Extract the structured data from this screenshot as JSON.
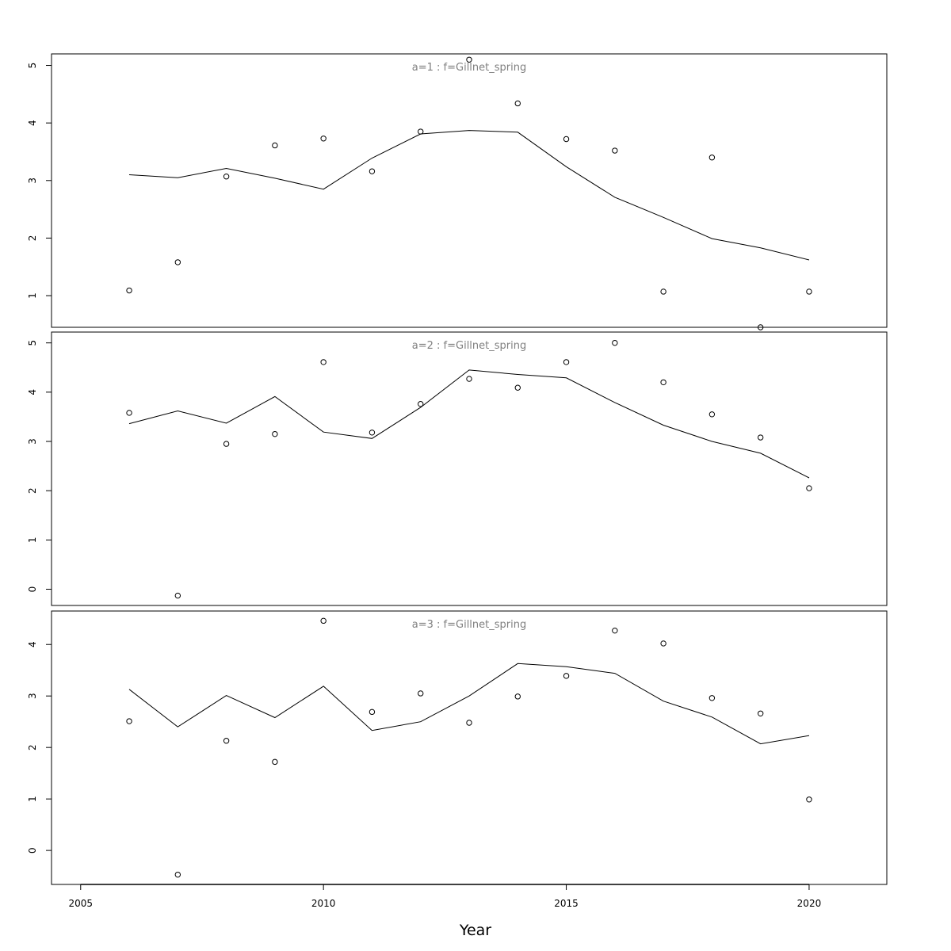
{
  "chart_data": {
    "type": "line",
    "xlabel": "Year",
    "xlim": [
      2004.4,
      2021.6
    ],
    "xticks": [
      2005,
      2010,
      2015,
      2020
    ],
    "colors": {
      "line": "#000000",
      "points": "#000000",
      "title": "#808080",
      "frame": "#000000"
    },
    "panels": [
      {
        "title": "a=1  :  f=Gillnet_spring",
        "ylim": [
          0.45,
          5.2
        ],
        "yticks": [
          1,
          2,
          3,
          4,
          5
        ],
        "x": [
          2006,
          2007,
          2008,
          2009,
          2010,
          2011,
          2012,
          2013,
          2014,
          2015,
          2016,
          2017,
          2018,
          2019,
          2020
        ],
        "observed": [
          1.09,
          1.58,
          3.07,
          3.61,
          3.73,
          3.16,
          3.85,
          5.1,
          4.34,
          3.72,
          3.52,
          1.07,
          3.4,
          0.45,
          1.07
        ],
        "fitted": [
          3.1,
          3.05,
          3.21,
          3.04,
          2.85,
          3.39,
          3.81,
          3.87,
          3.84,
          3.24,
          2.71,
          2.36,
          1.99,
          1.83,
          1.62
        ]
      },
      {
        "title": "a=2  :  f=Gillnet_spring",
        "ylim": [
          -0.33,
          5.22
        ],
        "yticks": [
          0,
          1,
          2,
          3,
          4,
          5
        ],
        "x": [
          2006,
          2007,
          2008,
          2009,
          2010,
          2011,
          2012,
          2013,
          2014,
          2015,
          2016,
          2017,
          2018,
          2019,
          2020
        ],
        "observed": [
          3.58,
          -0.13,
          2.95,
          3.15,
          4.61,
          3.18,
          3.76,
          4.27,
          4.09,
          4.61,
          5.0,
          4.2,
          3.55,
          3.08,
          2.05
        ],
        "fitted": [
          3.36,
          3.62,
          3.37,
          3.91,
          3.19,
          3.06,
          3.69,
          4.45,
          4.36,
          4.29,
          3.79,
          3.33,
          3.0,
          2.76,
          2.26
        ]
      },
      {
        "title": "a=3  :  f=Gillnet_spring",
        "ylim": [
          -0.66,
          4.65
        ],
        "yticks": [
          0,
          1,
          2,
          3,
          4
        ],
        "x": [
          2006,
          2007,
          2008,
          2009,
          2010,
          2011,
          2012,
          2013,
          2014,
          2015,
          2016,
          2017,
          2018,
          2019,
          2020
        ],
        "observed": [
          2.51,
          -0.47,
          2.13,
          1.72,
          4.46,
          2.69,
          3.05,
          2.48,
          2.99,
          3.39,
          4.27,
          4.02,
          2.96,
          2.66,
          0.99
        ],
        "fitted": [
          3.13,
          2.4,
          3.01,
          2.58,
          3.19,
          2.33,
          2.5,
          3.0,
          3.63,
          3.57,
          3.44,
          2.9,
          2.59,
          2.07,
          2.23
        ]
      }
    ]
  }
}
